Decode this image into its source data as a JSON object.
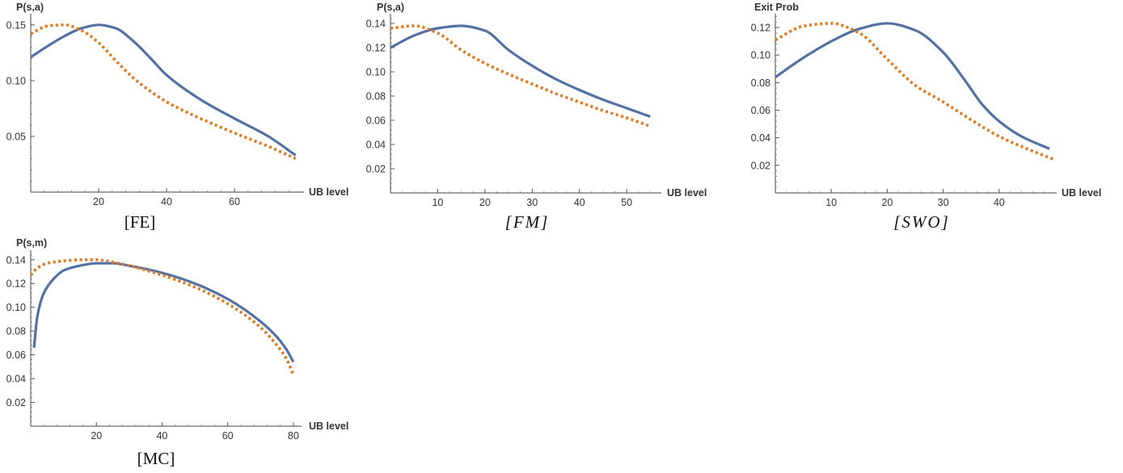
{
  "chart_data": [
    {
      "type": "line",
      "caption": "[FE]",
      "ylabel": "P(s,a)",
      "xlabel": "UB level",
      "xlim": [
        0,
        80
      ],
      "ylim": [
        0,
        0.16
      ],
      "xticks": [
        20,
        40,
        60
      ],
      "yticks": [
        0.05,
        0.1,
        0.15
      ],
      "yticks_labels": [
        "0.05",
        "0.10",
        "0.15"
      ],
      "grid": false,
      "series": [
        {
          "style": "solid",
          "color": "#5471a3",
          "x": [
            0,
            5,
            10,
            15,
            20,
            25,
            30,
            35,
            40,
            50,
            60,
            70,
            78
          ],
          "y": [
            0.121,
            0.131,
            0.14,
            0.147,
            0.15,
            0.147,
            0.136,
            0.121,
            0.105,
            0.083,
            0.066,
            0.05,
            0.033
          ]
        },
        {
          "style": "dotted",
          "color": "#e07b24",
          "x": [
            0,
            5,
            10,
            15,
            20,
            25,
            30,
            35,
            40,
            50,
            60,
            70,
            78
          ],
          "y": [
            0.142,
            0.149,
            0.15,
            0.145,
            0.134,
            0.118,
            0.103,
            0.091,
            0.081,
            0.066,
            0.053,
            0.041,
            0.03
          ]
        }
      ]
    },
    {
      "type": "line",
      "caption": "[FM]",
      "ylabel": "P(s,a)",
      "xlabel": "UB level",
      "xlim": [
        0,
        57
      ],
      "ylim": [
        0,
        0.148
      ],
      "xticks": [
        10,
        20,
        30,
        40,
        50
      ],
      "yticks": [
        0.02,
        0.04,
        0.06,
        0.08,
        0.1,
        0.12,
        0.14
      ],
      "yticks_labels": [
        "0.02",
        "0.04",
        "0.06",
        "0.08",
        "0.10",
        "0.12",
        "0.14"
      ],
      "grid": false,
      "series": [
        {
          "style": "solid",
          "color": "#5471a3",
          "x": [
            0,
            5,
            10,
            15,
            20,
            25,
            30,
            35,
            40,
            45,
            50,
            55
          ],
          "y": [
            0.12,
            0.13,
            0.136,
            0.138,
            0.134,
            0.118,
            0.105,
            0.094,
            0.085,
            0.077,
            0.07,
            0.063
          ]
        },
        {
          "style": "dotted",
          "color": "#e07b24",
          "x": [
            0,
            5,
            10,
            15,
            20,
            25,
            30,
            35,
            40,
            45,
            50,
            55
          ],
          "y": [
            0.136,
            0.138,
            0.132,
            0.118,
            0.107,
            0.098,
            0.09,
            0.082,
            0.075,
            0.068,
            0.062,
            0.055
          ]
        }
      ]
    },
    {
      "type": "line",
      "caption": "[SWO]",
      "ylabel": "Exit Prob",
      "xlabel": "UB level",
      "xlim": [
        0,
        50
      ],
      "ylim": [
        0,
        0.13
      ],
      "xticks": [
        10,
        20,
        30,
        40
      ],
      "yticks": [
        0.02,
        0.04,
        0.06,
        0.08,
        0.1,
        0.12
      ],
      "yticks_labels": [
        "0.02",
        "0.04",
        "0.06",
        "0.08",
        "0.10",
        "0.12"
      ],
      "grid": false,
      "series": [
        {
          "style": "solid",
          "color": "#5471a3",
          "x": [
            0,
            5,
            10,
            15,
            20,
            25,
            30,
            34,
            37,
            40,
            44,
            49
          ],
          "y": [
            0.084,
            0.098,
            0.11,
            0.119,
            0.123,
            0.118,
            0.102,
            0.081,
            0.064,
            0.052,
            0.041,
            0.032
          ]
        },
        {
          "style": "dotted",
          "color": "#e07b24",
          "x": [
            0,
            5,
            10,
            15,
            20,
            25,
            30,
            35,
            40,
            45,
            50
          ],
          "y": [
            0.111,
            0.121,
            0.123,
            0.116,
            0.097,
            0.078,
            0.066,
            0.053,
            0.041,
            0.032,
            0.024
          ]
        }
      ]
    },
    {
      "type": "line",
      "caption": "[MC]",
      "ylabel": "P(s,m)",
      "xlabel": "UB level",
      "xlim": [
        0,
        82
      ],
      "ylim": [
        0,
        0.148
      ],
      "xticks": [
        20,
        40,
        60,
        80
      ],
      "yticks": [
        0.02,
        0.04,
        0.06,
        0.08,
        0.1,
        0.12,
        0.14
      ],
      "yticks_labels": [
        "0.02",
        "0.04",
        "0.06",
        "0.08",
        "0.10",
        "0.12",
        "0.14"
      ],
      "grid": false,
      "series": [
        {
          "style": "solid",
          "color": "#5471a3",
          "x": [
            1,
            2,
            4,
            7,
            10,
            15,
            20,
            25,
            30,
            40,
            50,
            60,
            70,
            75,
            78,
            80
          ],
          "y": [
            0.066,
            0.092,
            0.112,
            0.124,
            0.131,
            0.135,
            0.137,
            0.137,
            0.135,
            0.129,
            0.12,
            0.107,
            0.088,
            0.075,
            0.064,
            0.054
          ]
        },
        {
          "style": "dotted",
          "color": "#e07b24",
          "x": [
            0,
            2,
            5,
            10,
            15,
            20,
            25,
            30,
            40,
            50,
            60,
            70,
            75,
            78,
            80
          ],
          "y": [
            0.127,
            0.133,
            0.137,
            0.139,
            0.14,
            0.14,
            0.138,
            0.135,
            0.127,
            0.117,
            0.103,
            0.083,
            0.068,
            0.056,
            0.043
          ]
        }
      ]
    }
  ]
}
